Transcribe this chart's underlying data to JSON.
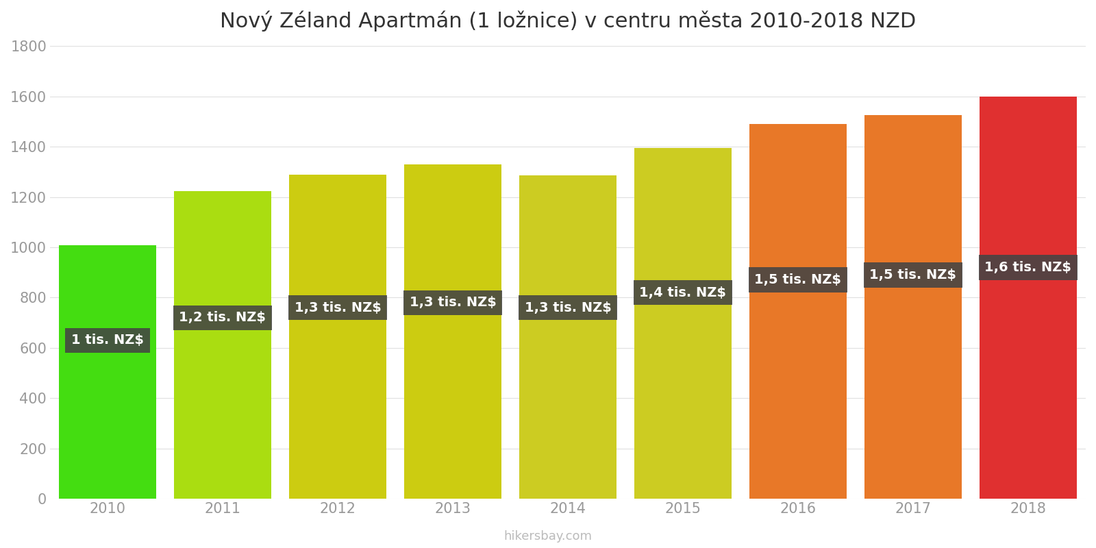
{
  "title": "Nový Zéland Apartmán (1 ložnice) v centru města 2010-2018 NZD",
  "years": [
    2010,
    2011,
    2012,
    2013,
    2014,
    2015,
    2016,
    2017,
    2018
  ],
  "values": [
    1007,
    1224,
    1290,
    1330,
    1287,
    1394,
    1490,
    1525,
    1600
  ],
  "bar_colors": [
    "#44dd11",
    "#aadd11",
    "#cccc11",
    "#cccc11",
    "#cccc22",
    "#cccc22",
    "#e87828",
    "#e87828",
    "#e03030"
  ],
  "labels": [
    "1 tis. NZ$",
    "1,2 tis. NZ$",
    "1,3 tis. NZ$",
    "1,3 tis. NZ$",
    "1,3 tis. NZ$",
    "1,4 tis. NZ$",
    "1,5 tis. NZ$",
    "1,5 tis. NZ$",
    "1,6 tis. NZ$"
  ],
  "label_y_values": [
    630,
    720,
    760,
    780,
    760,
    820,
    870,
    890,
    920
  ],
  "label_box_color": "#444444",
  "label_text_color": "#ffffff",
  "ylim": [
    0,
    1800
  ],
  "yticks": [
    0,
    200,
    400,
    600,
    800,
    1000,
    1200,
    1400,
    1600,
    1800
  ],
  "background_color": "#ffffff",
  "watermark": "hikersbay.com",
  "title_fontsize": 22,
  "tick_fontsize": 15,
  "label_fontsize": 14
}
